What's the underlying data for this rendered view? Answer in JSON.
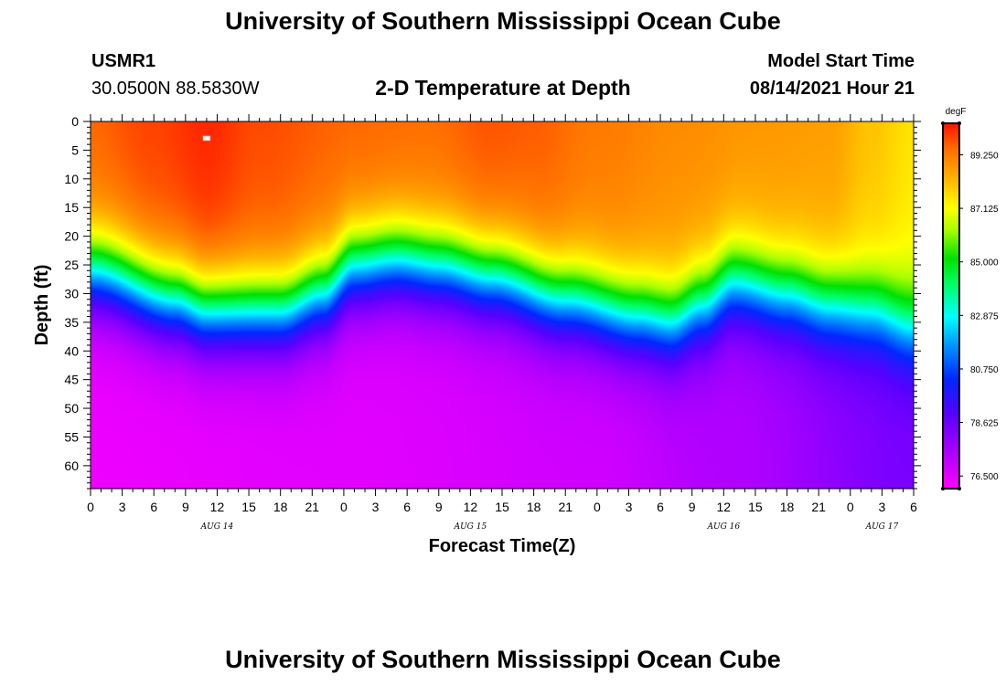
{
  "header": {
    "title": "University of Southern Mississippi Ocean Cube",
    "station_id": "USMR1",
    "station_coords": "30.0500N  88.5830W",
    "chart_title": "2-D Temperature at Depth",
    "model_label": "Model Start Time",
    "model_time": "08/14/2021 Hour 21"
  },
  "footer": {
    "title": "University of Southern Mississippi Ocean Cube"
  },
  "chart_data": {
    "type": "heatmap",
    "title": "2-D Temperature at Depth",
    "xlabel": "Forecast Time(Z)",
    "ylabel": "Depth (ft)",
    "x_hours_range": [
      0,
      78
    ],
    "x_tick_step_hours": 3,
    "x_tick_labels": [
      "0",
      "3",
      "6",
      "9",
      "12",
      "15",
      "18",
      "21",
      "0",
      "3",
      "6",
      "9",
      "12",
      "15",
      "18",
      "21",
      "0",
      "3",
      "6",
      "9",
      "12",
      "15",
      "18",
      "21",
      "0",
      "3",
      "6"
    ],
    "day_labels": [
      {
        "label": "AUG 14",
        "hour": 12
      },
      {
        "label": "AUG 15",
        "hour": 36
      },
      {
        "label": "AUG 16",
        "hour": 60
      },
      {
        "label": "AUG 17",
        "hour": 75
      }
    ],
    "ylim": [
      0,
      64
    ],
    "y_ticks": [
      0,
      5,
      10,
      15,
      20,
      25,
      30,
      35,
      40,
      45,
      50,
      55,
      60
    ],
    "colorbar": {
      "unit": "degF",
      "range": [
        76.0,
        90.5
      ],
      "labels": [
        "89.250",
        "87.125",
        "85.000",
        "82.875",
        "80.750",
        "78.625",
        "76.500"
      ],
      "label_values": [
        89.25,
        87.125,
        85.0,
        82.875,
        80.75,
        78.625,
        76.5
      ]
    },
    "thermocline_center_ft": {
      "hours": [
        0,
        8,
        11,
        18,
        22,
        25,
        29,
        33,
        38,
        45,
        52,
        55,
        58,
        61,
        66,
        70,
        74,
        78
      ],
      "values": [
        26,
        31,
        33,
        33,
        30,
        25,
        24,
        25,
        27,
        31,
        34,
        35,
        32,
        28,
        30,
        32,
        33,
        36
      ]
    },
    "surface_temperature_degF": {
      "hours": [
        0,
        6,
        11,
        16,
        24,
        32,
        38,
        42,
        48,
        56,
        64,
        70,
        74,
        78
      ],
      "values": [
        89.6,
        90.0,
        90.3,
        89.9,
        89.6,
        89.5,
        89.8,
        89.7,
        89.3,
        89.0,
        88.8,
        88.7,
        88.1,
        87.6
      ]
    },
    "bottom_temperature_degF": {
      "hours": [
        0,
        24,
        48,
        60,
        78
      ],
      "values": [
        76.3,
        76.5,
        76.8,
        77.3,
        78.3
      ]
    }
  }
}
